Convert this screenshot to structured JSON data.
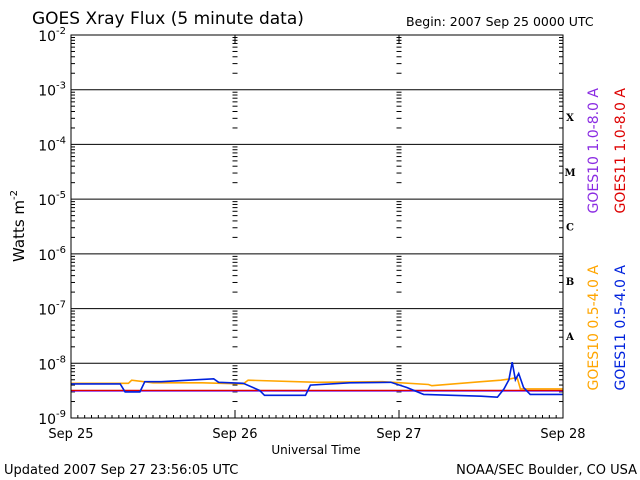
{
  "chart_data": {
    "type": "line",
    "title": "GOES Xray Flux (5 minute data)",
    "begin_label": "Begin:  2007 Sep 25 0000 UTC",
    "xlabel": "Universal Time",
    "ylabel": "Watts m",
    "ylabel_sup": "-2",
    "y_scale": "log",
    "ylim": [
      1e-09,
      0.01
    ],
    "xlim": [
      0,
      3
    ],
    "x_unit": "days since 2007 Sep 25 00:00 UTC",
    "x_ticks": [
      {
        "x": 0,
        "label": "Sep 25"
      },
      {
        "x": 1,
        "label": "Sep 26"
      },
      {
        "x": 2,
        "label": "Sep 27"
      },
      {
        "x": 3,
        "label": "Sep 28"
      }
    ],
    "y_ticks": [
      {
        "exp": -2,
        "base": "10",
        "sup": "-2"
      },
      {
        "exp": -3,
        "base": "10",
        "sup": "-3"
      },
      {
        "exp": -4,
        "base": "10",
        "sup": "-4"
      },
      {
        "exp": -5,
        "base": "10",
        "sup": "-5"
      },
      {
        "exp": -6,
        "base": "10",
        "sup": "-6"
      },
      {
        "exp": -7,
        "base": "10",
        "sup": "-7"
      },
      {
        "exp": -8,
        "base": "10",
        "sup": "-8"
      },
      {
        "exp": -9,
        "base": "10",
        "sup": "-9"
      }
    ],
    "flare_classes": [
      {
        "label": "X",
        "exp": -3.5
      },
      {
        "label": "M",
        "exp": -4.5
      },
      {
        "label": "C",
        "exp": -5.5
      },
      {
        "label": "B",
        "exp": -6.5
      },
      {
        "label": "A",
        "exp": -7.5
      }
    ],
    "grid": true,
    "series": [
      {
        "name": "GOES10 1.0-8.0 A",
        "color": "#8a2be2",
        "x": [
          0,
          3
        ],
        "y": [
          3.1e-09,
          3.1e-09
        ]
      },
      {
        "name": "GOES11 1.0-8.0 A",
        "color": "#dd0000",
        "x": [
          0,
          3
        ],
        "y": [
          3.2e-09,
          3.2e-09
        ]
      },
      {
        "name": "GOES10 0.5-4.0 A",
        "color": "#ffa500",
        "x": [
          0,
          0.35,
          0.37,
          0.5,
          0.8,
          1.05,
          1.08,
          1.5,
          1.9,
          2.18,
          2.2,
          2.5,
          2.62,
          2.68,
          2.72,
          2.74,
          3.0
        ],
        "y": [
          4.3e-09,
          4.3e-09,
          4.9e-09,
          4.4e-09,
          4.4e-09,
          4.2e-09,
          4.9e-09,
          4.5e-09,
          4.6e-09,
          4.1e-09,
          3.9e-09,
          4.6e-09,
          4.9e-09,
          5.2e-09,
          5.5e-09,
          3.4e-09,
          3.4e-09
        ]
      },
      {
        "name": "GOES11 0.5-4.0 A",
        "color": "#0022dd",
        "x": [
          0,
          0.3,
          0.33,
          0.42,
          0.45,
          0.55,
          0.87,
          0.9,
          1.05,
          1.15,
          1.18,
          1.25,
          1.35,
          1.43,
          1.46,
          1.7,
          1.95,
          2.05,
          2.15,
          2.5,
          2.6,
          2.64,
          2.67,
          2.69,
          2.71,
          2.73,
          2.76,
          2.8,
          3.0
        ],
        "y": [
          4.2e-09,
          4.2e-09,
          3e-09,
          3e-09,
          4.6e-09,
          4.6e-09,
          5.2e-09,
          4.5e-09,
          4.3e-09,
          3.2e-09,
          2.6e-09,
          2.6e-09,
          2.6e-09,
          2.6e-09,
          4e-09,
          4.4e-09,
          4.5e-09,
          3.6e-09,
          2.7e-09,
          2.5e-09,
          2.4e-09,
          3.4e-09,
          5e-09,
          1.05e-08,
          5e-09,
          6.5e-09,
          3.6e-09,
          2.7e-09,
          2.7e-09
        ]
      }
    ]
  },
  "footer": {
    "updated": "Updated 2007 Sep 27 23:56:05 UTC",
    "credit": "NOAA/SEC Boulder, CO USA"
  }
}
